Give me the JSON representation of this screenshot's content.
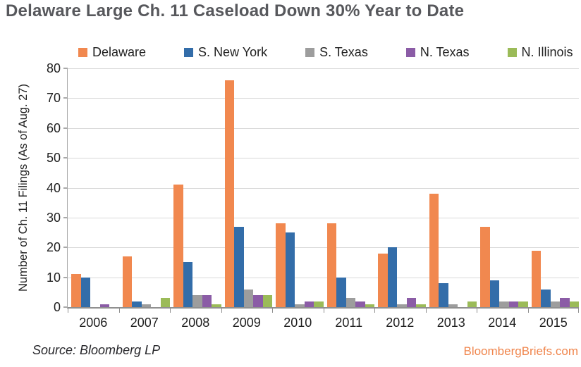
{
  "title": "Delaware Large Ch. 11 Caseload Down 30% Year to Date",
  "footer": {
    "source": "Source: Bloomberg LP",
    "site": "BloombergBriefs.com"
  },
  "colors": {
    "title_gray": "#57585c",
    "brand_orange": "#f0854c",
    "gridline": "#d8d8d8"
  },
  "chart_data": {
    "type": "bar",
    "title": "Delaware Large Ch. 11 Caseload Down 30% Year to Date",
    "xlabel": "",
    "ylabel": "Number of Ch. 11 Filings (As of Aug. 27)",
    "ylim": [
      0,
      80
    ],
    "ytick_step": 10,
    "grid": true,
    "legend_position": "top",
    "categories": [
      "2006",
      "2007",
      "2008",
      "2009",
      "2010",
      "2011",
      "2012",
      "2013",
      "2014",
      "2015"
    ],
    "series": [
      {
        "name": "Delaware",
        "color": "#f1884f",
        "values": [
          11,
          17,
          41,
          76,
          28,
          28,
          18,
          38,
          27,
          19
        ]
      },
      {
        "name": "S. New York",
        "color": "#336da9",
        "values": [
          10,
          2,
          15,
          27,
          25,
          10,
          20,
          8,
          9,
          6
        ]
      },
      {
        "name": "S. Texas",
        "color": "#9d9d9d",
        "values": [
          0,
          1,
          4,
          6,
          1,
          3,
          1,
          1,
          2,
          2
        ]
      },
      {
        "name": "N. Texas",
        "color": "#8b5ca6",
        "values": [
          1,
          0,
          4,
          4,
          2,
          2,
          3,
          0,
          2,
          3
        ]
      },
      {
        "name": "N. Illinois",
        "color": "#9bbb58",
        "values": [
          0,
          3,
          1,
          4,
          2,
          1,
          1,
          2,
          2,
          2
        ]
      }
    ]
  }
}
